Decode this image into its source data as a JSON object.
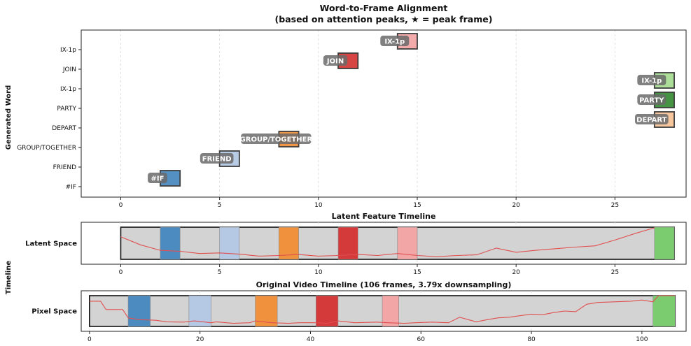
{
  "title_line1": "Word-to-Frame Alignment",
  "title_line2": "(based on attention peaks, ★ = peak frame)",
  "ylabel_main": "Generated Word",
  "ylabel_timeline": "Timeline",
  "chart_data": [
    {
      "type": "gantt",
      "title": "Word-to-Frame Alignment (based on attention peaks, ★ = peak frame)",
      "ylabel": "Generated Word",
      "xlim": [
        -2,
        28.6
      ],
      "xticks": [
        0,
        5,
        10,
        15,
        20,
        25
      ],
      "grid": true,
      "rows": [
        "#IF",
        "FRIEND",
        "GROUP/TOGETHER",
        "DEPART",
        "PARTY",
        "IX-1p",
        "JOIN",
        "IX-1p"
      ],
      "segments": [
        {
          "word": "#IF",
          "row": 0,
          "start": 2,
          "end": 3,
          "peak": 2,
          "color": "#4c8bbf"
        },
        {
          "word": "FRIEND",
          "row": 1,
          "start": 5,
          "end": 6,
          "peak": 5,
          "color": "#b5c9e4"
        },
        {
          "word": "GROUP/TOGETHER",
          "row": 2,
          "start": 8,
          "end": 9,
          "peak": 8,
          "color": "#f0913e"
        },
        {
          "word": "DEPART",
          "row": 3,
          "start": 27,
          "end": 28,
          "peak": 27,
          "color": "#f6c49a"
        },
        {
          "word": "PARTY",
          "row": 4,
          "start": 27,
          "end": 28,
          "peak": 27,
          "color": "#3a8f3a"
        },
        {
          "word": "IX-1p",
          "row": 5,
          "start": 27,
          "end": 28,
          "peak": 27,
          "color": "#a9dd94"
        },
        {
          "word": "JOIN",
          "row": 6,
          "start": 11,
          "end": 12,
          "peak": 11,
          "color": "#d43a3a"
        },
        {
          "word": "IX-1p",
          "row": 7,
          "start": 14,
          "end": 15,
          "peak": 14,
          "color": "#f2a6a6"
        }
      ]
    },
    {
      "type": "timeline",
      "title": "Latent Feature Timeline",
      "ylabel": "Latent Space",
      "xlim": [
        -2,
        28.6
      ],
      "xticks": [
        0,
        5,
        10,
        15,
        20,
        25
      ],
      "span": [
        0,
        28
      ],
      "segments": [
        {
          "start": 2,
          "end": 3,
          "color": "#4c8bbf"
        },
        {
          "start": 5,
          "end": 6,
          "color": "#b5c9e4"
        },
        {
          "start": 8,
          "end": 9,
          "color": "#f0913e"
        },
        {
          "start": 11,
          "end": 12,
          "color": "#d43a3a"
        },
        {
          "start": 14,
          "end": 15,
          "color": "#f2a6a6"
        },
        {
          "start": 27,
          "end": 28,
          "color": "#7bcc6e"
        }
      ],
      "line": {
        "x": [
          0,
          1,
          2,
          3,
          4,
          5,
          6,
          7,
          8,
          9,
          10,
          11,
          12,
          13,
          14,
          15,
          16,
          17,
          18,
          19,
          20,
          21,
          22,
          23,
          24,
          25,
          26,
          27
        ],
        "y": [
          0.7,
          0.45,
          0.28,
          0.25,
          0.18,
          0.2,
          0.16,
          0.1,
          0.12,
          0.15,
          0.1,
          0.12,
          0.15,
          0.12,
          0.18,
          0.12,
          0.08,
          0.12,
          0.14,
          0.35,
          0.22,
          0.28,
          0.33,
          0.38,
          0.42,
          0.6,
          0.8,
          0.98
        ],
        "color": "#e05050"
      }
    },
    {
      "type": "timeline",
      "title": "Original Video Timeline (106 frames, 3.79x downsampling)",
      "ylabel": "Pixel Space",
      "xlim": [
        -1.5,
        108
      ],
      "xticks": [
        0,
        20,
        40,
        60,
        80,
        100
      ],
      "span": [
        0,
        106
      ],
      "segments": [
        {
          "start": 7,
          "end": 11,
          "color": "#4c8bbf"
        },
        {
          "start": 18,
          "end": 22,
          "color": "#b5c9e4"
        },
        {
          "start": 30,
          "end": 34,
          "color": "#f0913e"
        },
        {
          "start": 41,
          "end": 45,
          "color": "#d43a3a"
        },
        {
          "start": 53,
          "end": 56,
          "color": "#f2a6a6"
        },
        {
          "start": 102,
          "end": 106,
          "color": "#7bcc6e"
        }
      ],
      "line": {
        "x": [
          0,
          2,
          3,
          6,
          7,
          9,
          12,
          14,
          17,
          19,
          22,
          23,
          26,
          29,
          30,
          33,
          36,
          38,
          41,
          43,
          45,
          48,
          52,
          54,
          57,
          59,
          62,
          65,
          67,
          70,
          72,
          74,
          76,
          78,
          80,
          82,
          84,
          86,
          88,
          90,
          92,
          95,
          98,
          100,
          102,
          103,
          106
        ],
        "y": [
          0.82,
          0.82,
          0.55,
          0.55,
          0.28,
          0.22,
          0.2,
          0.15,
          0.14,
          0.18,
          0.12,
          0.15,
          0.1,
          0.12,
          0.18,
          0.12,
          0.1,
          0.12,
          0.12,
          0.1,
          0.18,
          0.12,
          0.14,
          0.12,
          0.1,
          0.12,
          0.14,
          0.12,
          0.3,
          0.15,
          0.22,
          0.28,
          0.3,
          0.35,
          0.4,
          0.38,
          0.45,
          0.5,
          0.48,
          0.72,
          0.78,
          0.8,
          0.82,
          0.86,
          0.8,
          1.0,
          1.0
        ],
        "color": "#e05050"
      }
    }
  ]
}
